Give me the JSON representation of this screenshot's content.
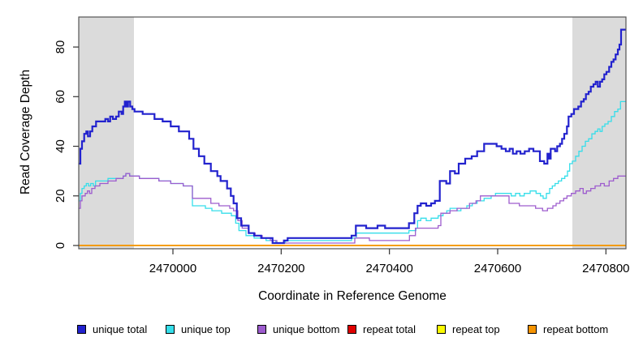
{
  "page": {
    "background": "#FFFFFF",
    "axis_color": "#555555",
    "tick_color": "#333333"
  },
  "chart_data": {
    "type": "line",
    "subtype": "step",
    "title": "",
    "xlabel": "Coordinate in Reference Genome",
    "ylabel": "Read Coverage Depth",
    "x_ticks": [
      2470000,
      2470200,
      2470400,
      2470600,
      2470800
    ],
    "y_ticks": [
      0,
      20,
      40,
      60,
      80
    ],
    "xlim": [
      2469826,
      2470837
    ],
    "ylim": [
      -1.3,
      92.1
    ],
    "grid": false,
    "legend_position": "bottom",
    "shaded_color": "#DBDBDB",
    "shaded_regions": [
      {
        "x0": 2469826,
        "x1": 2469928
      },
      {
        "x0": 2470738,
        "x1": 2470837
      }
    ],
    "series": [
      {
        "name": "unique total",
        "color": "#2222CE",
        "line_width": 2.2,
        "points": [
          [
            2469826,
            33
          ],
          [
            2469829,
            39
          ],
          [
            2469832,
            42
          ],
          [
            2469836,
            45
          ],
          [
            2469840,
            46
          ],
          [
            2469843,
            44
          ],
          [
            2469847,
            46
          ],
          [
            2469851,
            48
          ],
          [
            2469858,
            50
          ],
          [
            2469875,
            51
          ],
          [
            2469880,
            50
          ],
          [
            2469884,
            52
          ],
          [
            2469889,
            51
          ],
          [
            2469895,
            52
          ],
          [
            2469900,
            54
          ],
          [
            2469905,
            53
          ],
          [
            2469908,
            56
          ],
          [
            2469911,
            58
          ],
          [
            2469914,
            56
          ],
          [
            2469917,
            58
          ],
          [
            2469921,
            56
          ],
          [
            2469925,
            55
          ],
          [
            2469929,
            54
          ],
          [
            2469944,
            53
          ],
          [
            2469966,
            51
          ],
          [
            2469981,
            50
          ],
          [
            2469996,
            48
          ],
          [
            2470011,
            46
          ],
          [
            2470030,
            43
          ],
          [
            2470038,
            39
          ],
          [
            2470048,
            36
          ],
          [
            2470058,
            33
          ],
          [
            2470070,
            30
          ],
          [
            2470082,
            28
          ],
          [
            2470088,
            26
          ],
          [
            2470100,
            23
          ],
          [
            2470107,
            20
          ],
          [
            2470112,
            17
          ],
          [
            2470118,
            11
          ],
          [
            2470126,
            8
          ],
          [
            2470140,
            5
          ],
          [
            2470150,
            4
          ],
          [
            2470163,
            3
          ],
          [
            2470184,
            1
          ],
          [
            2470205,
            2
          ],
          [
            2470212,
            3
          ],
          [
            2470330,
            4
          ],
          [
            2470338,
            8
          ],
          [
            2470357,
            7
          ],
          [
            2470378,
            8
          ],
          [
            2470392,
            7
          ],
          [
            2470436,
            9
          ],
          [
            2470446,
            13
          ],
          [
            2470452,
            16
          ],
          [
            2470458,
            17
          ],
          [
            2470468,
            16
          ],
          [
            2470477,
            17
          ],
          [
            2470484,
            18
          ],
          [
            2470493,
            26
          ],
          [
            2470505,
            25
          ],
          [
            2470512,
            30
          ],
          [
            2470521,
            29
          ],
          [
            2470528,
            33
          ],
          [
            2470540,
            35
          ],
          [
            2470552,
            36
          ],
          [
            2470562,
            38
          ],
          [
            2470575,
            41
          ],
          [
            2470598,
            40
          ],
          [
            2470607,
            39
          ],
          [
            2470615,
            38
          ],
          [
            2470622,
            39
          ],
          [
            2470628,
            37
          ],
          [
            2470635,
            38
          ],
          [
            2470642,
            37
          ],
          [
            2470650,
            38
          ],
          [
            2470658,
            39
          ],
          [
            2470666,
            38
          ],
          [
            2470678,
            34
          ],
          [
            2470686,
            33
          ],
          [
            2470692,
            37
          ],
          [
            2470695,
            35
          ],
          [
            2470698,
            39
          ],
          [
            2470706,
            38
          ],
          [
            2470710,
            40
          ],
          [
            2470715,
            41
          ],
          [
            2470719,
            43
          ],
          [
            2470723,
            45
          ],
          [
            2470728,
            48
          ],
          [
            2470731,
            52
          ],
          [
            2470736,
            53
          ],
          [
            2470741,
            55
          ],
          [
            2470749,
            56
          ],
          [
            2470754,
            58
          ],
          [
            2470759,
            59
          ],
          [
            2470763,
            61
          ],
          [
            2470768,
            62
          ],
          [
            2470772,
            64
          ],
          [
            2470777,
            65
          ],
          [
            2470781,
            66
          ],
          [
            2470785,
            64
          ],
          [
            2470789,
            66
          ],
          [
            2470793,
            67
          ],
          [
            2470797,
            69
          ],
          [
            2470801,
            70
          ],
          [
            2470806,
            72
          ],
          [
            2470810,
            74
          ],
          [
            2470814,
            75
          ],
          [
            2470818,
            77
          ],
          [
            2470822,
            79
          ],
          [
            2470825,
            81
          ],
          [
            2470828,
            87
          ],
          [
            2470837,
            87
          ]
        ]
      },
      {
        "name": "unique top",
        "color": "#35DEEA",
        "line_width": 1.3,
        "points": [
          [
            2469826,
            18
          ],
          [
            2469829,
            21
          ],
          [
            2469832,
            23
          ],
          [
            2469836,
            24
          ],
          [
            2469840,
            25
          ],
          [
            2469844,
            24
          ],
          [
            2469848,
            25
          ],
          [
            2469853,
            24
          ],
          [
            2469857,
            26
          ],
          [
            2469880,
            27
          ],
          [
            2469908,
            28
          ],
          [
            2469913,
            29
          ],
          [
            2469920,
            28
          ],
          [
            2469929,
            28
          ],
          [
            2469938,
            27
          ],
          [
            2469974,
            26
          ],
          [
            2469996,
            25
          ],
          [
            2470019,
            24
          ],
          [
            2470036,
            16
          ],
          [
            2470060,
            15
          ],
          [
            2470072,
            14
          ],
          [
            2470090,
            13
          ],
          [
            2470108,
            12
          ],
          [
            2470116,
            9
          ],
          [
            2470122,
            6
          ],
          [
            2470135,
            4
          ],
          [
            2470150,
            3
          ],
          [
            2470172,
            2
          ],
          [
            2470190,
            1
          ],
          [
            2470208,
            2
          ],
          [
            2470330,
            3
          ],
          [
            2470339,
            5
          ],
          [
            2470436,
            6
          ],
          [
            2470449,
            7
          ],
          [
            2470452,
            10
          ],
          [
            2470458,
            11
          ],
          [
            2470468,
            10
          ],
          [
            2470477,
            11
          ],
          [
            2470490,
            12
          ],
          [
            2470499,
            13
          ],
          [
            2470506,
            14
          ],
          [
            2470512,
            15
          ],
          [
            2470525,
            14
          ],
          [
            2470532,
            15
          ],
          [
            2470543,
            16
          ],
          [
            2470553,
            17
          ],
          [
            2470562,
            18
          ],
          [
            2470575,
            19
          ],
          [
            2470588,
            20
          ],
          [
            2470596,
            21
          ],
          [
            2470625,
            20
          ],
          [
            2470633,
            21
          ],
          [
            2470641,
            20
          ],
          [
            2470649,
            21
          ],
          [
            2470660,
            22
          ],
          [
            2470671,
            21
          ],
          [
            2470679,
            20
          ],
          [
            2470684,
            19
          ],
          [
            2470690,
            21
          ],
          [
            2470696,
            23
          ],
          [
            2470701,
            24
          ],
          [
            2470706,
            25
          ],
          [
            2470712,
            26
          ],
          [
            2470718,
            27
          ],
          [
            2470724,
            28
          ],
          [
            2470729,
            30
          ],
          [
            2470733,
            33
          ],
          [
            2470738,
            34
          ],
          [
            2470744,
            36
          ],
          [
            2470750,
            38
          ],
          [
            2470756,
            40
          ],
          [
            2470762,
            42
          ],
          [
            2470768,
            43
          ],
          [
            2470774,
            45
          ],
          [
            2470780,
            46
          ],
          [
            2470785,
            47
          ],
          [
            2470789,
            46
          ],
          [
            2470793,
            48
          ],
          [
            2470798,
            49
          ],
          [
            2470804,
            50
          ],
          [
            2470810,
            52
          ],
          [
            2470816,
            54
          ],
          [
            2470822,
            55
          ],
          [
            2470827,
            58
          ],
          [
            2470837,
            58
          ]
        ]
      },
      {
        "name": "unique bottom",
        "color": "#9D5CCE",
        "line_width": 1.3,
        "points": [
          [
            2469826,
            15
          ],
          [
            2469829,
            18
          ],
          [
            2469832,
            20
          ],
          [
            2469838,
            21
          ],
          [
            2469842,
            22
          ],
          [
            2469846,
            21
          ],
          [
            2469850,
            23
          ],
          [
            2469856,
            24
          ],
          [
            2469865,
            25
          ],
          [
            2469880,
            26
          ],
          [
            2469895,
            27
          ],
          [
            2469908,
            28
          ],
          [
            2469913,
            29
          ],
          [
            2469920,
            28
          ],
          [
            2469929,
            28
          ],
          [
            2469938,
            27
          ],
          [
            2469974,
            26
          ],
          [
            2469996,
            25
          ],
          [
            2470019,
            24
          ],
          [
            2470036,
            19
          ],
          [
            2470070,
            17
          ],
          [
            2470085,
            16
          ],
          [
            2470105,
            15
          ],
          [
            2470112,
            14
          ],
          [
            2470120,
            10
          ],
          [
            2470128,
            7
          ],
          [
            2470140,
            5
          ],
          [
            2470152,
            4
          ],
          [
            2470165,
            3
          ],
          [
            2470180,
            2
          ],
          [
            2470192,
            1
          ],
          [
            2470330,
            1
          ],
          [
            2470336,
            3
          ],
          [
            2470363,
            2
          ],
          [
            2470437,
            4
          ],
          [
            2470448,
            7
          ],
          [
            2470490,
            8
          ],
          [
            2470495,
            13
          ],
          [
            2470512,
            14
          ],
          [
            2470525,
            15
          ],
          [
            2470548,
            17
          ],
          [
            2470560,
            18
          ],
          [
            2470568,
            20
          ],
          [
            2470610,
            20
          ],
          [
            2470621,
            17
          ],
          [
            2470640,
            16
          ],
          [
            2470670,
            15
          ],
          [
            2470683,
            14
          ],
          [
            2470692,
            15
          ],
          [
            2470702,
            16
          ],
          [
            2470708,
            17
          ],
          [
            2470715,
            18
          ],
          [
            2470722,
            19
          ],
          [
            2470728,
            20
          ],
          [
            2470736,
            21
          ],
          [
            2470744,
            22
          ],
          [
            2470752,
            23
          ],
          [
            2470758,
            21
          ],
          [
            2470764,
            22
          ],
          [
            2470772,
            23
          ],
          [
            2470780,
            24
          ],
          [
            2470790,
            25
          ],
          [
            2470797,
            24
          ],
          [
            2470806,
            26
          ],
          [
            2470814,
            27
          ],
          [
            2470822,
            28
          ],
          [
            2470837,
            28
          ]
        ]
      },
      {
        "name": "repeat total",
        "color": "#E00000",
        "line_width": 1.6,
        "points": [
          [
            2469826,
            0
          ],
          [
            2470837,
            0
          ]
        ]
      },
      {
        "name": "repeat top",
        "color": "#FAFA00",
        "line_width": 1.6,
        "points": [
          [
            2469826,
            0
          ],
          [
            2470837,
            0
          ]
        ]
      },
      {
        "name": "repeat bottom",
        "color": "#F59300",
        "line_width": 1.6,
        "points": [
          [
            2469826,
            0
          ],
          [
            2470837,
            0
          ]
        ]
      }
    ]
  }
}
